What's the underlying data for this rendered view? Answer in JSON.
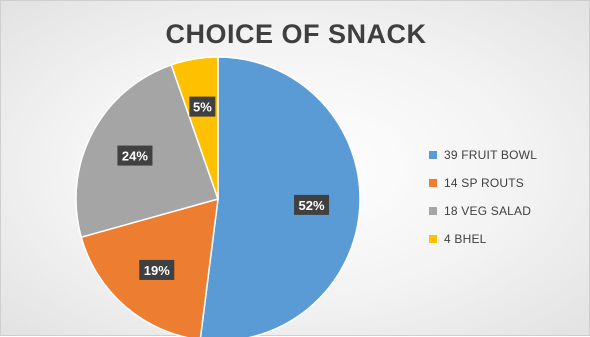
{
  "chart_data": {
    "type": "pie",
    "title": "CHOICE OF SNACK",
    "categories": [
      "39 FRUIT BOWL",
      "14 SP ROUTS",
      "18 VEG SALAD",
      "4 BHEL"
    ],
    "values": [
      39,
      14,
      18,
      4
    ],
    "data_labels": [
      "52%",
      "19%",
      "24%",
      "5%"
    ],
    "colors": [
      "#5b9bd5",
      "#ed7d31",
      "#a5a5a5",
      "#ffc000"
    ],
    "legend_position": "right",
    "start_angle": "12 o'clock, clockwise"
  }
}
